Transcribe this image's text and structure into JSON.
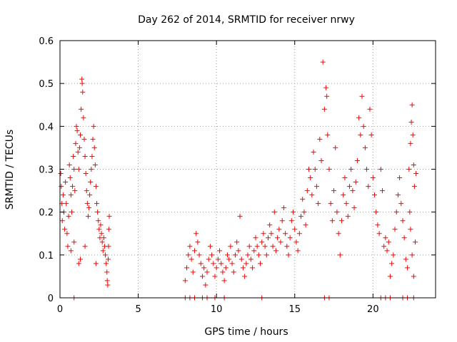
{
  "chart_data": {
    "type": "scatter",
    "title": "Day 262 of 2014, SRMTID for receiver nrwy",
    "xlabel": "GPS time / hours",
    "ylabel": "SRMTID / TECUs",
    "xlim": [
      0,
      24
    ],
    "ylim": [
      0,
      0.6
    ],
    "xticks": [
      0,
      5,
      10,
      15,
      20
    ],
    "xtick_labels": [
      "0",
      "5",
      "10",
      "15",
      "20"
    ],
    "yticks": [
      0,
      0.1,
      0.2,
      0.3,
      0.4,
      0.5,
      0.6
    ],
    "ytick_labels": [
      "0",
      "0.1",
      "0.2",
      "0.3",
      "0.4",
      "0.5",
      "0.6"
    ],
    "grid": true,
    "marker": "+",
    "series": [
      {
        "name": "SRMTID",
        "color": "#ff0000",
        "points": [
          [
            0.05,
            0.29
          ],
          [
            0.08,
            0.26
          ],
          [
            0.12,
            0.22
          ],
          [
            0.15,
            0.18
          ],
          [
            0.2,
            0.24
          ],
          [
            0.25,
            0.2
          ],
          [
            0.3,
            0.16
          ],
          [
            0.35,
            0.27
          ],
          [
            0.4,
            0.22
          ],
          [
            0.45,
            0.15
          ],
          [
            0.5,
            0.12
          ],
          [
            0.55,
            0.19
          ],
          [
            0.6,
            0.31
          ],
          [
            0.65,
            0.28
          ],
          [
            0.7,
            0.24
          ],
          [
            0.75,
            0.2
          ],
          [
            0.8,
            0.26
          ],
          [
            0.85,
            0.33
          ],
          [
            0.9,
            0.3
          ],
          [
            0.95,
            0.25
          ],
          [
            1.0,
            0.36
          ],
          [
            1.05,
            0.4
          ],
          [
            1.1,
            0.39
          ],
          [
            1.15,
            0.34
          ],
          [
            1.2,
            0.3
          ],
          [
            1.25,
            0.35
          ],
          [
            1.3,
            0.38
          ],
          [
            1.35,
            0.44
          ],
          [
            1.4,
            0.51
          ],
          [
            1.42,
            0.5
          ],
          [
            1.45,
            0.48
          ],
          [
            1.5,
            0.42
          ],
          [
            1.55,
            0.37
          ],
          [
            1.6,
            0.33
          ],
          [
            1.65,
            0.29
          ],
          [
            1.7,
            0.25
          ],
          [
            1.75,
            0.22
          ],
          [
            1.8,
            0.19
          ],
          [
            1.85,
            0.21
          ],
          [
            1.9,
            0.24
          ],
          [
            1.95,
            0.27
          ],
          [
            2.0,
            0.3
          ],
          [
            2.05,
            0.33
          ],
          [
            2.1,
            0.37
          ],
          [
            2.15,
            0.4
          ],
          [
            2.2,
            0.35
          ],
          [
            2.25,
            0.31
          ],
          [
            2.3,
            0.26
          ],
          [
            2.35,
            0.22
          ],
          [
            2.4,
            0.2
          ],
          [
            2.45,
            0.18
          ],
          [
            2.5,
            0.16
          ],
          [
            2.55,
            0.14
          ],
          [
            2.6,
            0.17
          ],
          [
            2.65,
            0.15
          ],
          [
            2.7,
            0.13
          ],
          [
            2.75,
            0.11
          ],
          [
            2.8,
            0.14
          ],
          [
            2.85,
            0.12
          ],
          [
            2.9,
            0.1
          ],
          [
            2.95,
            0.08
          ],
          [
            3.0,
            0.06
          ],
          [
            3.02,
            0.04
          ],
          [
            3.05,
            0.03
          ],
          [
            3.08,
            0.09
          ],
          [
            3.1,
            0.12
          ],
          [
            3.12,
            0.16
          ],
          [
            3.15,
            0.19
          ],
          [
            1.3,
            0.09
          ],
          [
            1.2,
            0.08
          ],
          [
            0.9,
            0.13
          ],
          [
            0.7,
            0.11
          ],
          [
            2.3,
            0.08
          ],
          [
            1.6,
            0.12
          ],
          [
            8.0,
            0.04
          ],
          [
            8.1,
            0.07
          ],
          [
            8.2,
            0.1
          ],
          [
            8.3,
            0.12
          ],
          [
            8.4,
            0.09
          ],
          [
            8.5,
            0.06
          ],
          [
            8.6,
            0.11
          ],
          [
            8.7,
            0.15
          ],
          [
            8.8,
            0.13
          ],
          [
            8.9,
            0.1
          ],
          [
            9.0,
            0.08
          ],
          [
            9.1,
            0.05
          ],
          [
            9.2,
            0.07
          ],
          [
            9.3,
            0.03
          ],
          [
            9.4,
            0.06
          ],
          [
            9.5,
            0.09
          ],
          [
            9.6,
            0.12
          ],
          [
            9.7,
            0.1
          ],
          [
            9.8,
            0.08
          ],
          [
            9.9,
            0.05
          ],
          [
            10.0,
            0.07
          ],
          [
            10.1,
            0.09
          ],
          [
            10.2,
            0.11
          ],
          [
            10.3,
            0.08
          ],
          [
            10.4,
            0.06
          ],
          [
            10.5,
            0.04
          ],
          [
            10.6,
            0.07
          ],
          [
            10.7,
            0.1
          ],
          [
            10.8,
            0.09
          ],
          [
            10.9,
            0.12
          ],
          [
            11.0,
            0.08
          ],
          [
            11.1,
            0.06
          ],
          [
            11.2,
            0.1
          ],
          [
            11.3,
            0.13
          ],
          [
            11.4,
            0.11
          ],
          [
            11.5,
            0.19
          ],
          [
            11.6,
            0.09
          ],
          [
            11.7,
            0.07
          ],
          [
            11.8,
            0.05
          ],
          [
            11.9,
            0.08
          ],
          [
            12.0,
            0.1
          ],
          [
            12.1,
            0.12
          ],
          [
            12.2,
            0.09
          ],
          [
            12.3,
            0.07
          ],
          [
            12.4,
            0.11
          ],
          [
            12.5,
            0.14
          ],
          [
            12.6,
            0.12
          ],
          [
            12.7,
            0.1
          ],
          [
            12.8,
            0.08
          ],
          [
            12.9,
            0.13
          ],
          [
            13.0,
            0.15
          ],
          [
            13.1,
            0.12
          ],
          [
            13.2,
            0.1
          ],
          [
            13.3,
            0.14
          ],
          [
            13.4,
            0.17
          ],
          [
            13.5,
            0.15
          ],
          [
            13.6,
            0.12
          ],
          [
            13.7,
            0.2
          ],
          [
            13.8,
            0.11
          ],
          [
            13.9,
            0.14
          ],
          [
            14.0,
            0.16
          ],
          [
            14.1,
            0.13
          ],
          [
            14.2,
            0.18
          ],
          [
            14.3,
            0.21
          ],
          [
            14.4,
            0.15
          ],
          [
            14.5,
            0.12
          ],
          [
            14.6,
            0.1
          ],
          [
            14.7,
            0.14
          ],
          [
            14.8,
            0.18
          ],
          [
            14.9,
            0.2
          ],
          [
            15.0,
            0.16
          ],
          [
            15.1,
            0.13
          ],
          [
            15.2,
            0.11
          ],
          [
            15.3,
            0.15
          ],
          [
            15.4,
            0.19
          ],
          [
            15.5,
            0.23
          ],
          [
            15.6,
            0.2
          ],
          [
            15.7,
            0.17
          ],
          [
            15.8,
            0.25
          ],
          [
            15.9,
            0.3
          ],
          [
            16.0,
            0.28
          ],
          [
            16.1,
            0.24
          ],
          [
            16.2,
            0.34
          ],
          [
            16.3,
            0.3
          ],
          [
            16.4,
            0.26
          ],
          [
            16.5,
            0.22
          ],
          [
            16.6,
            0.37
          ],
          [
            16.7,
            0.32
          ],
          [
            16.8,
            0.55
          ],
          [
            16.9,
            0.44
          ],
          [
            17.0,
            0.49
          ],
          [
            17.05,
            0.47
          ],
          [
            17.1,
            0.38
          ],
          [
            17.2,
            0.3
          ],
          [
            17.3,
            0.22
          ],
          [
            17.4,
            0.18
          ],
          [
            17.5,
            0.25
          ],
          [
            17.6,
            0.35
          ],
          [
            17.7,
            0.2
          ],
          [
            17.8,
            0.15
          ],
          [
            17.9,
            0.1
          ],
          [
            18.0,
            0.18
          ],
          [
            18.1,
            0.24
          ],
          [
            18.2,
            0.28
          ],
          [
            18.3,
            0.22
          ],
          [
            18.4,
            0.19
          ],
          [
            18.5,
            0.26
          ],
          [
            18.6,
            0.3
          ],
          [
            18.7,
            0.25
          ],
          [
            18.8,
            0.21
          ],
          [
            18.9,
            0.27
          ],
          [
            19.0,
            0.32
          ],
          [
            19.1,
            0.42
          ],
          [
            19.2,
            0.38
          ],
          [
            19.3,
            0.47
          ],
          [
            19.4,
            0.4
          ],
          [
            19.5,
            0.35
          ],
          [
            19.6,
            0.3
          ],
          [
            19.7,
            0.26
          ],
          [
            19.8,
            0.44
          ],
          [
            19.9,
            0.38
          ],
          [
            20.0,
            0.28
          ],
          [
            20.1,
            0.24
          ],
          [
            20.2,
            0.2
          ],
          [
            20.3,
            0.17
          ],
          [
            20.4,
            0.15
          ],
          [
            20.5,
            0.3
          ],
          [
            20.6,
            0.25
          ],
          [
            20.7,
            0.12
          ],
          [
            20.8,
            0.14
          ],
          [
            20.9,
            0.11
          ],
          [
            21.0,
            0.13
          ],
          [
            21.1,
            0.05
          ],
          [
            21.2,
            0.08
          ],
          [
            21.3,
            0.1
          ],
          [
            21.4,
            0.16
          ],
          [
            21.5,
            0.2
          ],
          [
            21.6,
            0.24
          ],
          [
            21.7,
            0.28
          ],
          [
            21.8,
            0.22
          ],
          [
            21.9,
            0.18
          ],
          [
            22.0,
            0.14
          ],
          [
            22.1,
            0.09
          ],
          [
            22.2,
            0.07
          ],
          [
            22.3,
            0.3
          ],
          [
            22.4,
            0.36
          ],
          [
            22.45,
            0.41
          ],
          [
            22.5,
            0.45
          ],
          [
            22.55,
            0.38
          ],
          [
            22.6,
            0.31
          ],
          [
            22.65,
            0.26
          ],
          [
            22.7,
            0.13
          ],
          [
            22.75,
            0.29
          ],
          [
            22.6,
            0.05
          ],
          [
            22.5,
            0.1
          ],
          [
            22.4,
            0.16
          ],
          [
            22.35,
            0.2
          ]
        ]
      }
    ],
    "zero_points_x": [
      0.9,
      8.0,
      8.3,
      8.6,
      9.1,
      9.4,
      9.9,
      10.5,
      12.9,
      16.9,
      17.2,
      20.5,
      20.8,
      21.1,
      21.9,
      22.2,
      22.6
    ]
  }
}
